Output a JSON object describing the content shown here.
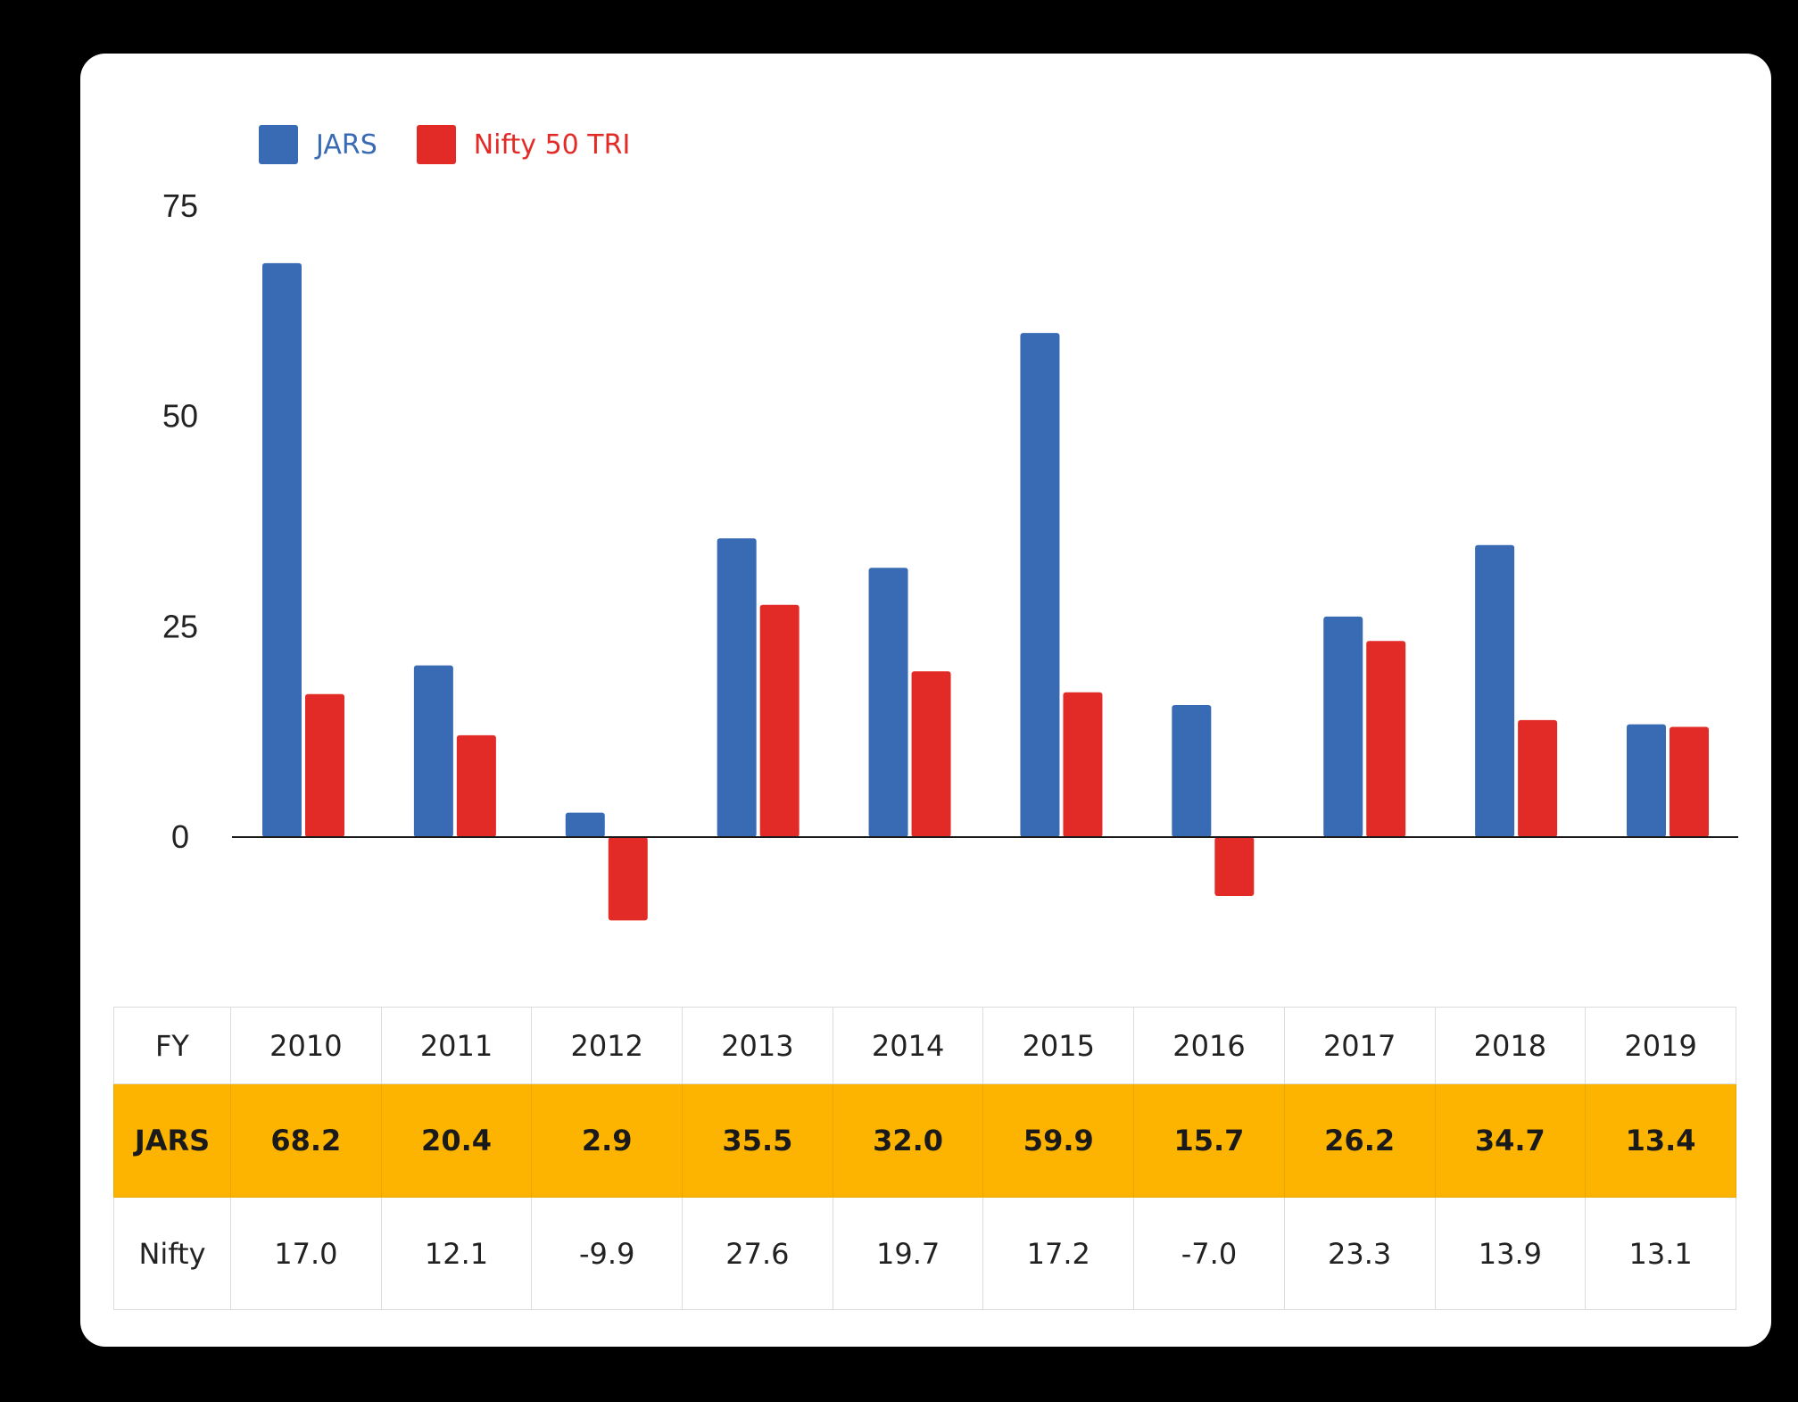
{
  "legend": {
    "items": [
      {
        "label": "JARS",
        "color": "#386bb4"
      },
      {
        "label": "Nifty 50 TRI",
        "color": "#e22b26"
      }
    ]
  },
  "chart_data": {
    "type": "bar",
    "categories": [
      "2010",
      "2011",
      "2012",
      "2013",
      "2014",
      "2015",
      "2016",
      "2017",
      "2018",
      "2019"
    ],
    "series": [
      {
        "name": "JARS",
        "color": "#386bb4",
        "values": [
          68.2,
          20.4,
          2.9,
          35.5,
          32.0,
          59.9,
          15.7,
          26.2,
          34.7,
          13.4
        ]
      },
      {
        "name": "Nifty 50 TRI",
        "color": "#e22b26",
        "values": [
          17.0,
          12.1,
          -9.9,
          27.6,
          19.7,
          17.2,
          -7.0,
          23.3,
          13.9,
          13.1
        ]
      }
    ],
    "yticks": [
      0,
      25,
      50,
      75
    ],
    "ylim": [
      -10,
      75
    ],
    "grid": false,
    "legend_position": "top-left",
    "title": "",
    "xlabel": "",
    "ylabel": ""
  },
  "table": {
    "header_label": "FY",
    "years": [
      "2010",
      "2011",
      "2012",
      "2013",
      "2014",
      "2015",
      "2016",
      "2017",
      "2018",
      "2019"
    ],
    "rows": [
      {
        "label": "JARS",
        "values": [
          "68.2",
          "20.4",
          "2.9",
          "35.5",
          "32.0",
          "59.9",
          "15.7",
          "26.2",
          "34.7",
          "13.4"
        ],
        "highlight_color": "#fdb400"
      },
      {
        "label": "Nifty",
        "values": [
          "17.0",
          "12.1",
          "-9.9",
          "27.6",
          "19.7",
          "17.2",
          "-7.0",
          "23.3",
          "13.9",
          "13.1"
        ]
      }
    ]
  }
}
